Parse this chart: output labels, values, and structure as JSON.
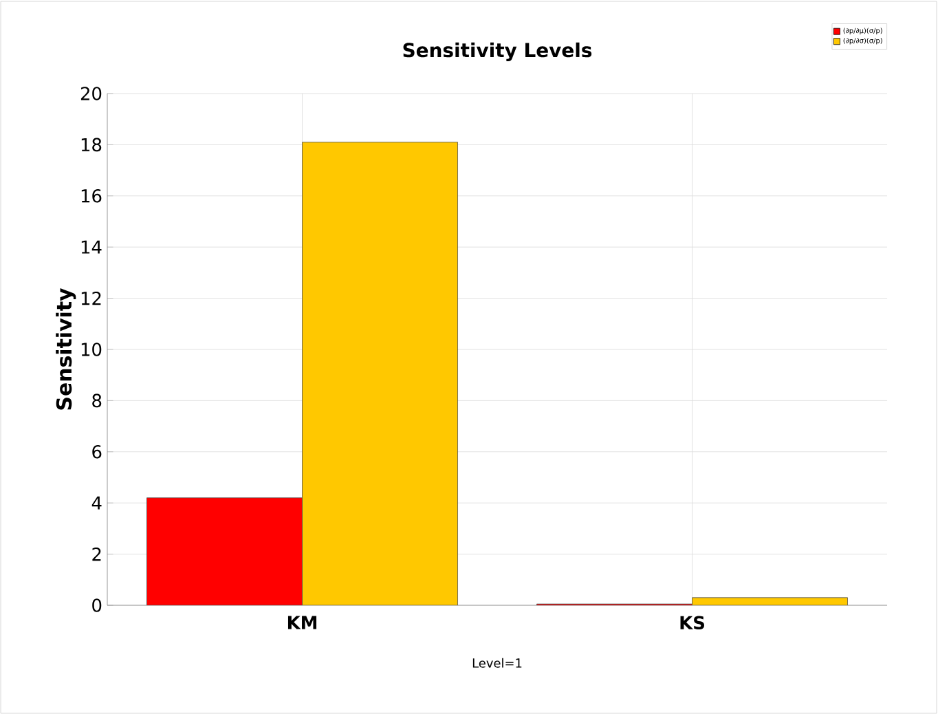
{
  "chart_data": {
    "type": "bar",
    "title": "Sensitivity Levels",
    "xlabel": "Level=1",
    "ylabel": "Sensitivity",
    "categories": [
      "KM",
      "KS"
    ],
    "series": [
      {
        "name": "(∂p/∂μ)(σ/p)",
        "color": "#ff0000",
        "values": [
          4.2,
          0.05
        ]
      },
      {
        "name": "(∂p/∂σ)(σ/p)",
        "color": "#ffc800",
        "values": [
          18.1,
          0.3
        ]
      }
    ],
    "ylim": [
      0,
      20
    ],
    "yticks": [
      0,
      2,
      4,
      6,
      8,
      10,
      12,
      14,
      16,
      18,
      20
    ],
    "grid": true,
    "legend": "top right"
  }
}
